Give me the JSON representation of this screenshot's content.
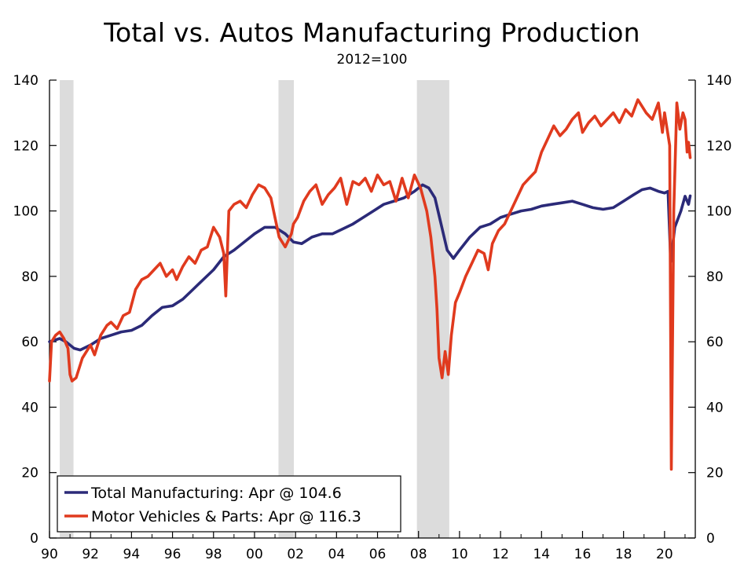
{
  "chart_data": {
    "type": "line",
    "title": "Total vs. Autos Manufacturing Production",
    "subtitle": "2012=100",
    "xlabel": "",
    "ylabel": "",
    "x_range": [
      1990.0,
      2021.5
    ],
    "ylim": [
      0,
      140
    ],
    "y_ticks": [
      0,
      20,
      40,
      60,
      80,
      100,
      120,
      140
    ],
    "y_tick_labels": [
      "0",
      "20",
      "40",
      "60",
      "80",
      "100",
      "120",
      "140"
    ],
    "x_ticks": [
      1990,
      1992,
      1994,
      1996,
      1998,
      2000,
      2002,
      2004,
      2006,
      2008,
      2010,
      2012,
      2014,
      2016,
      2018,
      2020
    ],
    "x_tick_labels": [
      "90",
      "92",
      "94",
      "96",
      "98",
      "00",
      "02",
      "04",
      "06",
      "08",
      "10",
      "12",
      "14",
      "16",
      "18",
      "20"
    ],
    "grid": false,
    "legend_position": "bottom-left",
    "recession_shading": [
      [
        1990.5,
        1991.17
      ],
      [
        2001.17,
        2001.92
      ],
      [
        2007.92,
        2009.5
      ]
    ],
    "colors": {
      "total": "#2b2a78",
      "autos": "#e03a1e",
      "recession": "#dcdcdc"
    },
    "series": [
      {
        "name": "Total Manufacturing: Apr @ 104.6",
        "color": "#2b2a78",
        "x": [
          1990.0,
          1990.5,
          1990.8,
          1991.2,
          1991.5,
          1992.0,
          1992.5,
          1993.0,
          1993.5,
          1994.0,
          1994.5,
          1995.0,
          1995.5,
          1996.0,
          1996.5,
          1997.0,
          1997.5,
          1998.0,
          1998.5,
          1999.0,
          1999.5,
          2000.0,
          2000.5,
          2001.0,
          2001.5,
          2001.9,
          2002.3,
          2002.8,
          2003.3,
          2003.8,
          2004.3,
          2004.8,
          2005.3,
          2005.8,
          2006.3,
          2006.8,
          2007.3,
          2007.8,
          2008.2,
          2008.5,
          2008.8,
          2009.1,
          2009.4,
          2009.7,
          2010.0,
          2010.5,
          2011.0,
          2011.5,
          2012.0,
          2012.5,
          2013.0,
          2013.5,
          2014.0,
          2014.5,
          2015.0,
          2015.5,
          2016.0,
          2016.5,
          2017.0,
          2017.5,
          2018.0,
          2018.5,
          2018.9,
          2019.3,
          2019.7,
          2020.0,
          2020.17,
          2020.3,
          2020.5,
          2020.8,
          2021.0,
          2021.17,
          2021.25
        ],
        "values": [
          60,
          61,
          60,
          58,
          57.5,
          59,
          61,
          62,
          63,
          63.5,
          65,
          68,
          70.5,
          71,
          73,
          76,
          79,
          82,
          86,
          88,
          90.5,
          93,
          95,
          95,
          93,
          90.5,
          90,
          92,
          93,
          93,
          94.5,
          96,
          98,
          100,
          102,
          103,
          104,
          106,
          108,
          107,
          104,
          96,
          88,
          85.5,
          88,
          92,
          95,
          96,
          98,
          99,
          100,
          100.5,
          101.5,
          102,
          102.5,
          103,
          102,
          101,
          100.5,
          101,
          103,
          105,
          106.5,
          107,
          106,
          105.5,
          106,
          84.5,
          95,
          100,
          104.5,
          102,
          104.6
        ]
      },
      {
        "name": "Motor Vehicles & Parts: Apr @ 116.3",
        "color": "#e03a1e",
        "x": [
          1990.0,
          1990.1,
          1990.3,
          1990.5,
          1990.7,
          1990.9,
          1991.0,
          1991.1,
          1991.3,
          1991.6,
          1992.0,
          1992.2,
          1992.5,
          1992.8,
          1993.0,
          1993.3,
          1993.6,
          1993.9,
          1994.2,
          1994.5,
          1994.8,
          1995.1,
          1995.4,
          1995.7,
          1996.0,
          1996.2,
          1996.5,
          1996.8,
          1997.1,
          1997.4,
          1997.7,
          1998.0,
          1998.3,
          1998.5,
          1998.6,
          1998.75,
          1999.0,
          1999.3,
          1999.6,
          1999.9,
          2000.2,
          2000.5,
          2000.8,
          2001.0,
          2001.2,
          2001.5,
          2001.8,
          2001.9,
          2002.1,
          2002.4,
          2002.7,
          2003.0,
          2003.3,
          2003.6,
          2003.9,
          2004.2,
          2004.5,
          2004.8,
          2005.1,
          2005.4,
          2005.7,
          2006.0,
          2006.3,
          2006.6,
          2006.9,
          2007.2,
          2007.5,
          2007.8,
          2008.1,
          2008.4,
          2008.6,
          2008.8,
          2008.9,
          2009.0,
          2009.15,
          2009.3,
          2009.45,
          2009.6,
          2009.8,
          2010.0,
          2010.3,
          2010.6,
          2010.9,
          2011.2,
          2011.4,
          2011.6,
          2011.9,
          2012.2,
          2012.5,
          2012.8,
          2013.1,
          2013.4,
          2013.7,
          2014.0,
          2014.3,
          2014.6,
          2014.9,
          2015.2,
          2015.5,
          2015.8,
          2016.0,
          2016.3,
          2016.6,
          2016.9,
          2017.2,
          2017.5,
          2017.8,
          2018.1,
          2018.4,
          2018.7,
          2018.9,
          2019.1,
          2019.4,
          2019.7,
          2019.9,
          2020.0,
          2020.1,
          2020.25,
          2020.33,
          2020.45,
          2020.6,
          2020.75,
          2020.9,
          2021.0,
          2021.1,
          2021.17,
          2021.25
        ],
        "values": [
          48,
          60,
          62,
          63,
          61,
          58,
          50,
          48,
          49,
          55,
          59,
          56,
          62,
          65,
          66,
          64,
          68,
          69,
          76,
          79,
          80,
          82,
          84,
          80,
          82,
          79,
          83,
          86,
          84,
          88,
          89,
          95,
          92,
          87,
          74,
          100,
          102,
          103,
          101,
          105,
          108,
          107,
          104,
          98,
          92,
          89,
          93,
          96,
          98,
          103,
          106,
          108,
          102,
          105,
          107,
          110,
          102,
          109,
          108,
          110,
          106,
          111,
          108,
          109,
          103,
          110,
          104,
          111,
          107,
          100,
          92,
          80,
          70,
          55,
          49,
          57,
          50,
          62,
          72,
          75,
          80,
          84,
          88,
          87,
          82,
          90,
          94,
          96,
          100,
          104,
          108,
          110,
          112,
          118,
          122,
          126,
          123,
          125,
          128,
          130,
          124,
          127,
          129,
          126,
          128,
          130,
          127,
          131,
          129,
          134,
          132,
          130,
          128,
          133,
          124,
          130,
          126,
          120,
          21,
          100,
          133,
          125,
          130,
          128,
          118,
          121,
          116.3
        ]
      }
    ]
  }
}
